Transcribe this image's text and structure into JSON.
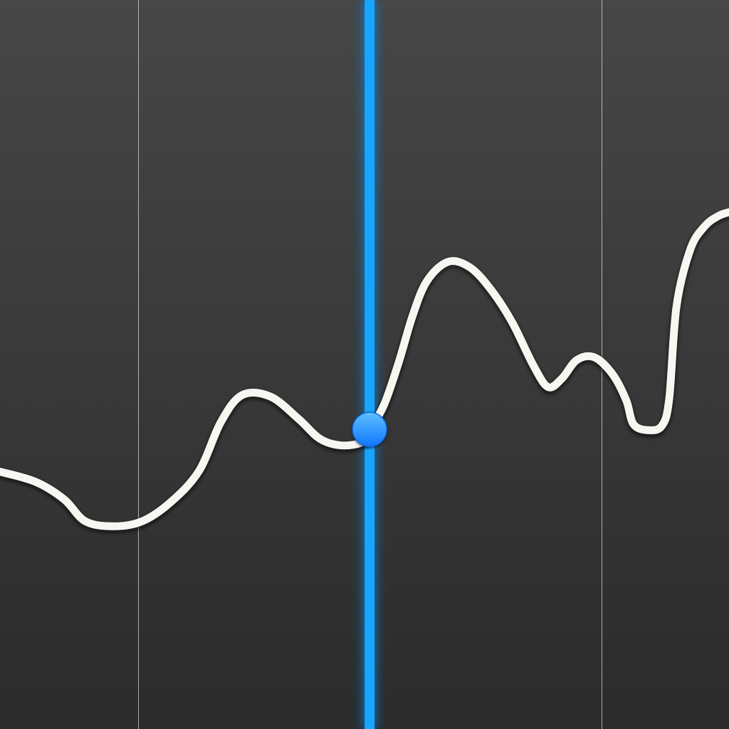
{
  "colors": {
    "background_top": "#474747",
    "background_bottom": "#2b2b2b",
    "gridline": "#d9d9d9",
    "series": "#f7f7f2",
    "cursor": "#17a6ff",
    "cursor_glow": "#0a7fd6",
    "marker": "#2f9cff"
  },
  "icons": {
    "marker": "selected-point-dot"
  },
  "chart_data": {
    "type": "line",
    "title": "",
    "xlabel": "",
    "ylabel": "",
    "xlim": [
      0,
      1
    ],
    "ylim": [
      0,
      1
    ],
    "grid": "vertical",
    "gridlines_x": [
      0.189,
      0.825
    ],
    "cursor_x": 0.507,
    "selected_point": {
      "x": 0.507,
      "y": 0.411
    },
    "series": [
      {
        "values": [
          [
            0.0,
            0.353
          ],
          [
            0.049,
            0.339
          ],
          [
            0.088,
            0.315
          ],
          [
            0.117,
            0.285
          ],
          [
            0.156,
            0.278
          ],
          [
            0.195,
            0.285
          ],
          [
            0.234,
            0.311
          ],
          [
            0.273,
            0.354
          ],
          [
            0.303,
            0.421
          ],
          [
            0.332,
            0.458
          ],
          [
            0.371,
            0.456
          ],
          [
            0.41,
            0.425
          ],
          [
            0.439,
            0.398
          ],
          [
            0.469,
            0.389
          ],
          [
            0.498,
            0.394
          ],
          [
            0.508,
            0.411
          ],
          [
            0.527,
            0.445
          ],
          [
            0.547,
            0.503
          ],
          [
            0.566,
            0.567
          ],
          [
            0.586,
            0.615
          ],
          [
            0.615,
            0.641
          ],
          [
            0.645,
            0.633
          ],
          [
            0.674,
            0.602
          ],
          [
            0.703,
            0.557
          ],
          [
            0.732,
            0.498
          ],
          [
            0.752,
            0.469
          ],
          [
            0.771,
            0.481
          ],
          [
            0.791,
            0.506
          ],
          [
            0.815,
            0.51
          ],
          [
            0.84,
            0.487
          ],
          [
            0.859,
            0.451
          ],
          [
            0.869,
            0.418
          ],
          [
            0.889,
            0.41
          ],
          [
            0.908,
            0.416
          ],
          [
            0.918,
            0.453
          ],
          [
            0.928,
            0.58
          ],
          [
            0.947,
            0.658
          ],
          [
            0.967,
            0.69
          ],
          [
            0.986,
            0.704
          ],
          [
            1.0,
            0.709
          ]
        ]
      }
    ]
  }
}
